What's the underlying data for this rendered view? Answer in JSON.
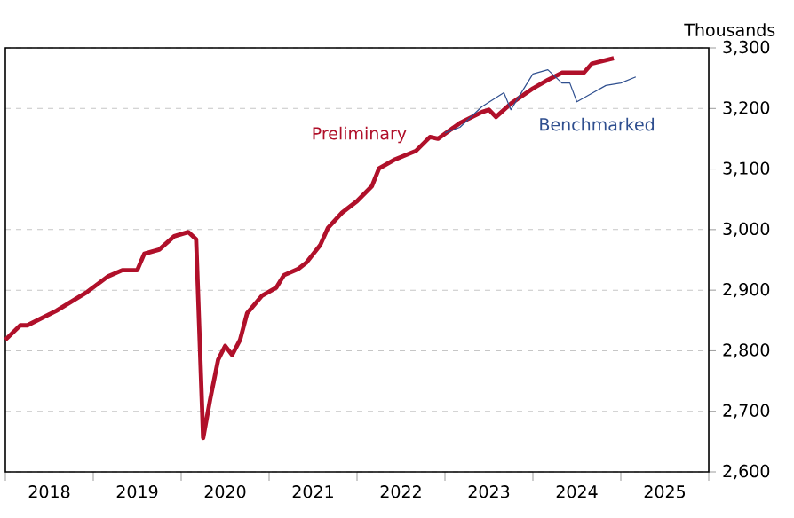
{
  "chart_data": {
    "type": "line",
    "ylabel": "Thousands",
    "xlim": [
      "2018-01",
      "2026-01"
    ],
    "xticks": [
      {
        "value": "2018-07",
        "label": "2018"
      },
      {
        "value": "2019-07",
        "label": "2019"
      },
      {
        "value": "2020-07",
        "label": "2020"
      },
      {
        "value": "2021-07",
        "label": "2021"
      },
      {
        "value": "2022-07",
        "label": "2022"
      },
      {
        "value": "2023-07",
        "label": "2023"
      },
      {
        "value": "2024-07",
        "label": "2024"
      },
      {
        "value": "2025-07",
        "label": "2025"
      }
    ],
    "ylim": [
      2600,
      3300
    ],
    "yticks": [
      {
        "value": 2600,
        "label": "2,600"
      },
      {
        "value": 2700,
        "label": "2,700"
      },
      {
        "value": 2800,
        "label": "2,800"
      },
      {
        "value": 2900,
        "label": "2,900"
      },
      {
        "value": 3000,
        "label": "3,000"
      },
      {
        "value": 3100,
        "label": "3,100"
      },
      {
        "value": 3200,
        "label": "3,200"
      },
      {
        "value": 3300,
        "label": "3,300"
      }
    ],
    "grid": "y",
    "line_style": "solid",
    "marker": "none",
    "series": [
      {
        "name": "Preliminary",
        "color": "#b0102a",
        "x": [
          "2018-01",
          "2018-03",
          "2018-04",
          "2018-08",
          "2018-10",
          "2018-12",
          "2019-03",
          "2019-05",
          "2019-07",
          "2019-08",
          "2019-10",
          "2019-12",
          "2020-02",
          "2020-03",
          "2020-04",
          "2020-05",
          "2020-06",
          "2020-07",
          "2020-08",
          "2020-09",
          "2020-10",
          "2020-12",
          "2021-02",
          "2021-03",
          "2021-05",
          "2021-06",
          "2021-08",
          "2021-09",
          "2021-11",
          "2022-01",
          "2022-03",
          "2022-04",
          "2022-06",
          "2022-09",
          "2022-11",
          "2022-12",
          "2023-03",
          "2023-06",
          "2023-07",
          "2023-08",
          "2023-10",
          "2024-01",
          "2024-03",
          "2024-05",
          "2024-08",
          "2024-09",
          "2024-12"
        ],
        "values": [
          2818,
          2842,
          2842,
          2866,
          2881,
          2896,
          2923,
          2933,
          2933,
          2960,
          2967,
          2989,
          2996,
          2984,
          2656,
          2720,
          2785,
          2808,
          2793,
          2818,
          2862,
          2891,
          2904,
          2925,
          2935,
          2945,
          2974,
          3003,
          3028,
          3047,
          3072,
          3101,
          3115,
          3130,
          3153,
          3150,
          3176,
          3194,
          3198,
          3186,
          3208,
          3233,
          3247,
          3259,
          3259,
          3274,
          3283
        ]
      },
      {
        "name": "Benchmarked",
        "color": "#2f4f8f",
        "x": [
          "2023-01",
          "2023-03",
          "2023-06",
          "2023-09",
          "2023-10",
          "2024-01",
          "2024-03",
          "2024-05",
          "2024-06",
          "2024-07",
          "2024-09",
          "2024-11",
          "2025-01",
          "2025-03"
        ],
        "values": [
          3160,
          3169,
          3203,
          3226,
          3198,
          3257,
          3264,
          3242,
          3242,
          3211,
          3225,
          3238,
          3242,
          3252
        ]
      }
    ]
  }
}
